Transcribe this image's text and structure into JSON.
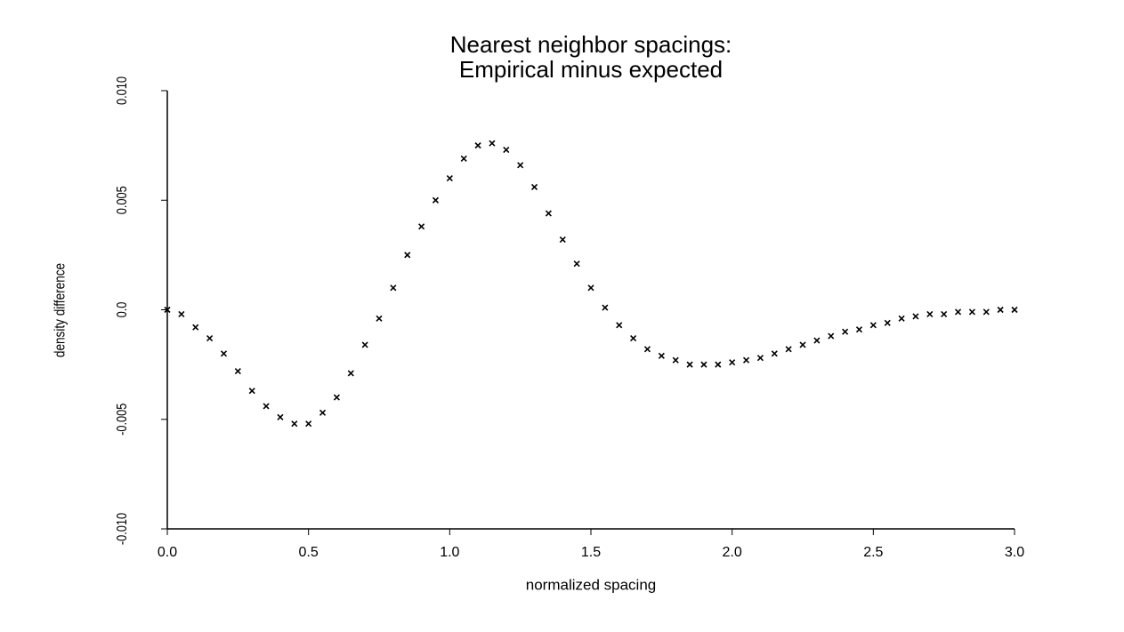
{
  "chart_data": {
    "type": "scatter",
    "title": [
      "Nearest neighbor spacings:",
      "Empirical minus expected"
    ],
    "x_label": "normalized spacing",
    "y_label": "density difference",
    "color": "#000000",
    "marker": "x",
    "grid": false,
    "x": [
      0,
      0.05,
      0.1,
      0.15,
      0.2,
      0.25,
      0.3,
      0.35,
      0.4,
      0.45,
      0.5,
      0.55,
      0.6,
      0.65,
      0.7,
      0.75,
      0.8,
      0.85,
      0.9,
      0.95,
      1.0,
      1.05,
      1.1,
      1.15,
      1.2,
      1.25,
      1.3,
      1.35,
      1.4,
      1.45,
      1.5,
      1.55,
      1.6,
      1.65,
      1.7,
      1.75,
      1.8,
      1.85,
      1.9,
      1.95,
      2.0,
      2.05,
      2.1,
      2.15,
      2.2,
      2.25,
      2.3,
      2.35,
      2.4,
      2.45,
      2.5,
      2.55,
      2.6,
      2.65,
      2.7,
      2.75,
      2.8,
      2.85,
      2.9,
      2.95,
      3.0
    ],
    "values": [
      0,
      -0.0002,
      -0.0008,
      -0.0013,
      -0.002,
      -0.0028,
      -0.0037,
      -0.0044,
      -0.0049,
      -0.0052,
      -0.0052,
      -0.0047,
      -0.004,
      -0.0029,
      -0.0016,
      -0.0004,
      0.001,
      0.0025,
      0.0038,
      0.005,
      0.006,
      0.0069,
      0.0075,
      0.0076,
      0.0073,
      0.0066,
      0.0056,
      0.0044,
      0.0032,
      0.0021,
      0.001,
      0.0001,
      -0.0007,
      -0.0013,
      -0.0018,
      -0.0021,
      -0.0023,
      -0.0025,
      -0.0025,
      -0.0025,
      -0.0024,
      -0.0023,
      -0.0022,
      -0.002,
      -0.0018,
      -0.0016,
      -0.0014,
      -0.0012,
      -0.001,
      -0.0009,
      -0.0007,
      -0.0006,
      -0.0004,
      -0.0003,
      -0.0002,
      -0.0002,
      -0.0001,
      -0.0001,
      -0.0001,
      0,
      0
    ],
    "xlim": [
      0,
      3
    ],
    "xticks": [
      {
        "value": 0,
        "label": "0.0"
      },
      0.5,
      {
        "value": 1,
        "label": "1.0"
      },
      1.5,
      {
        "value": 2,
        "label": "2.0"
      },
      2.5,
      {
        "value": 3,
        "label": "3.0"
      }
    ],
    "ylim": [
      -0.01,
      0.01
    ],
    "yticks": [
      {
        "value": -0.01,
        "label": "-0.010"
      },
      -0.005,
      {
        "value": 0,
        "label": "0.0"
      },
      0.005,
      {
        "value": 0.01,
        "label": "0.010"
      }
    ]
  }
}
